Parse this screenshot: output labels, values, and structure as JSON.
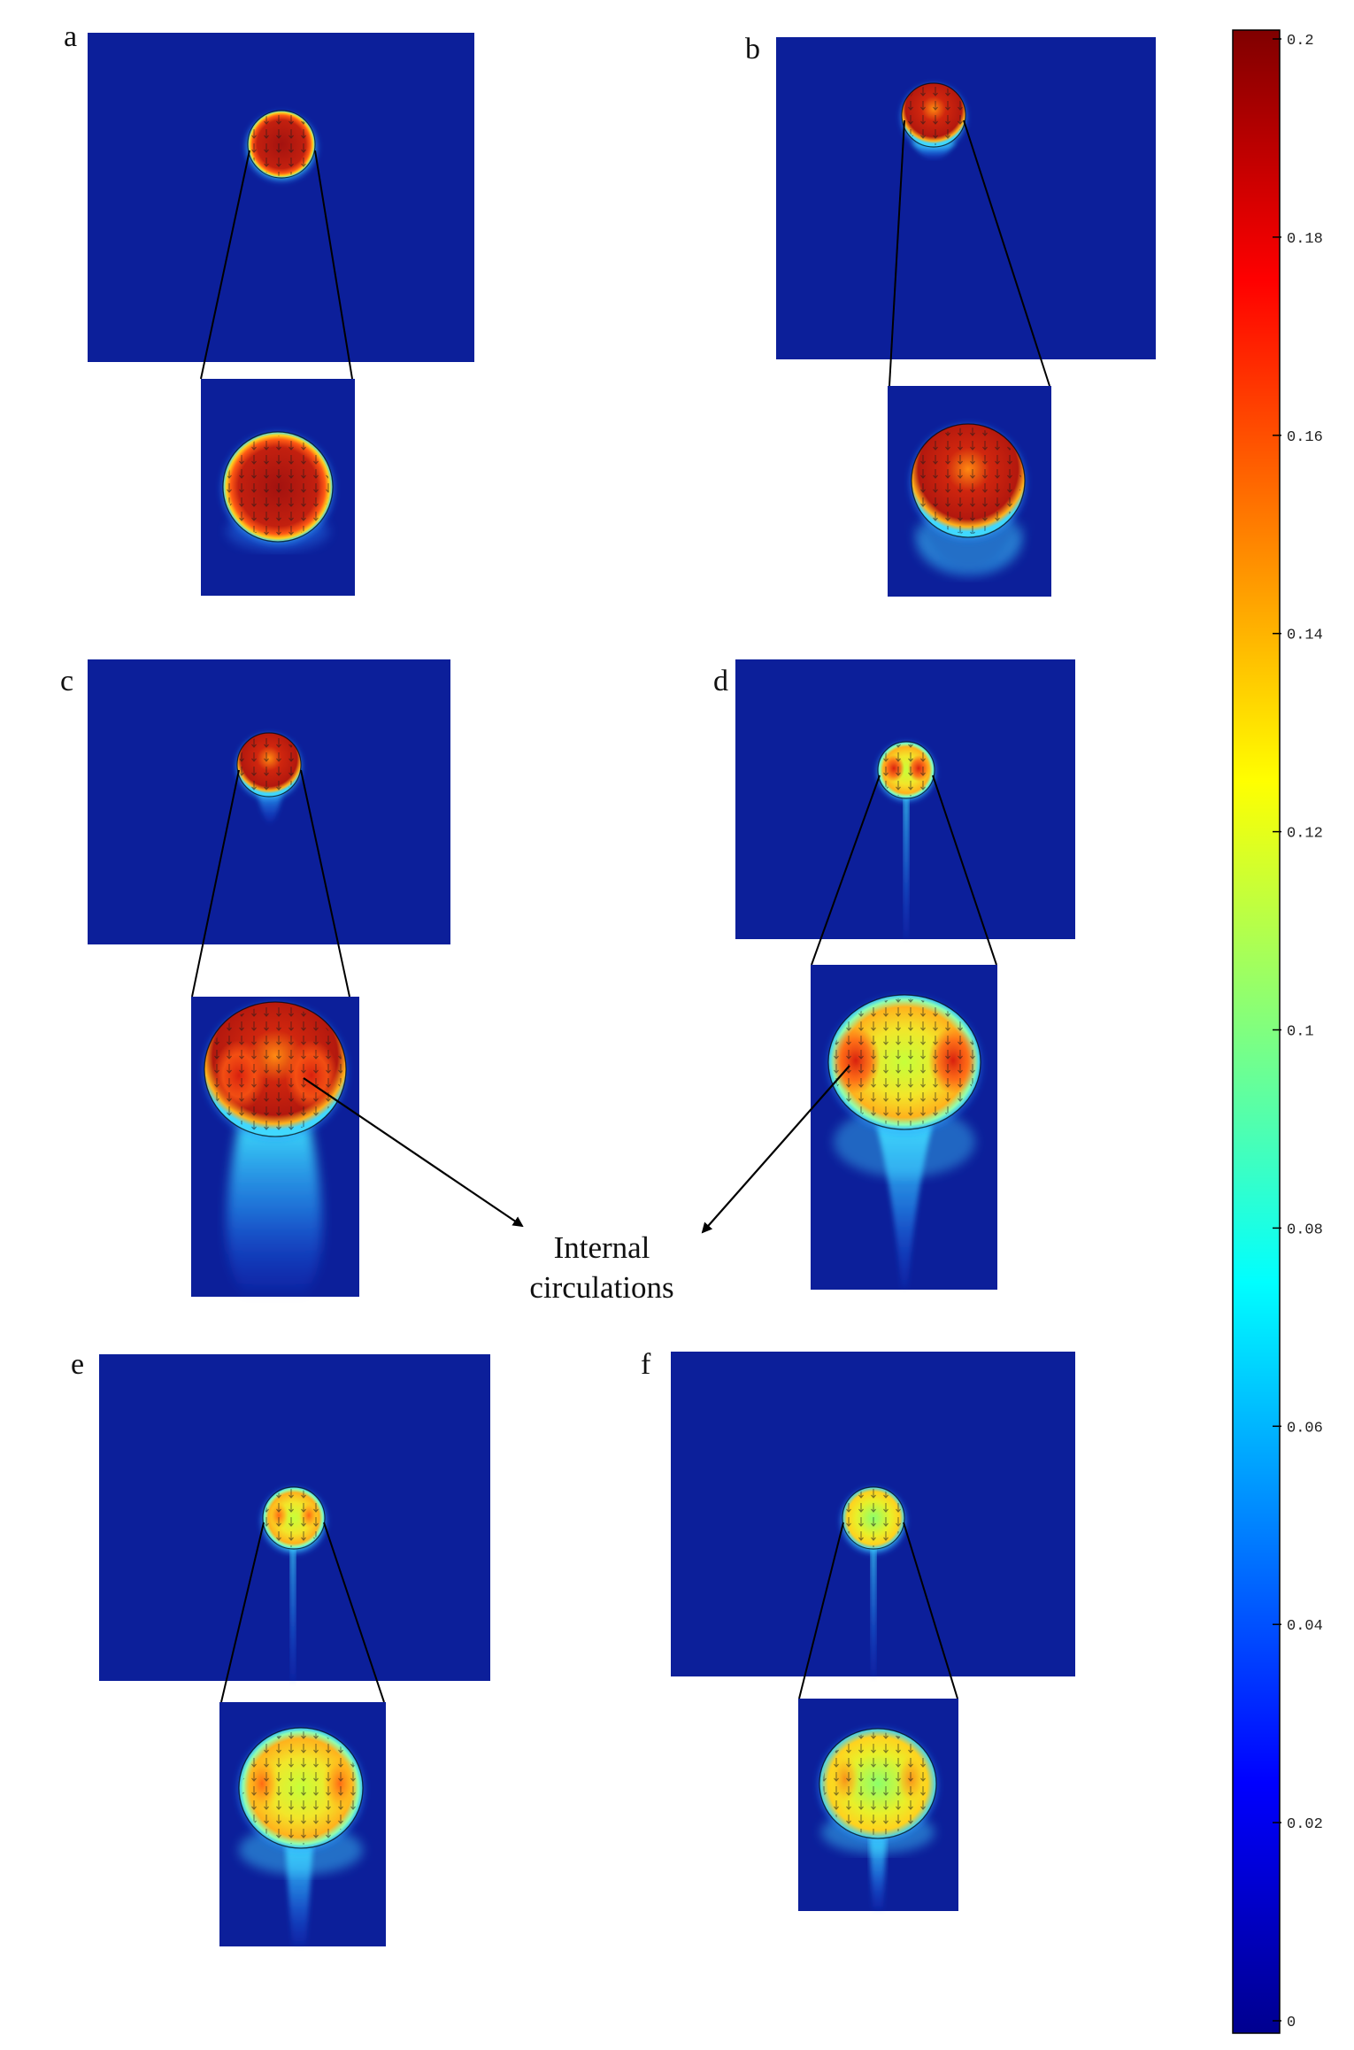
{
  "figure": {
    "panels": [
      {
        "id": "a",
        "label": "a"
      },
      {
        "id": "b",
        "label": "b"
      },
      {
        "id": "c",
        "label": "c"
      },
      {
        "id": "d",
        "label": "d"
      },
      {
        "id": "e",
        "label": "e"
      },
      {
        "id": "f",
        "label": "f"
      }
    ],
    "annotation": {
      "line1": "Internal",
      "line2": "circulations"
    }
  },
  "colorbar": {
    "colormap": "jet",
    "min": 0,
    "max": 0.2,
    "ticks": [
      "0.2",
      "0.18",
      "0.16",
      "0.14",
      "0.12",
      "0.1",
      "0.08",
      "0.06",
      "0.04",
      "0.02",
      "0"
    ]
  },
  "colors": {
    "background_field": "#0c1f9a",
    "droplet_core": "#b0150f",
    "outline": "#000000"
  }
}
